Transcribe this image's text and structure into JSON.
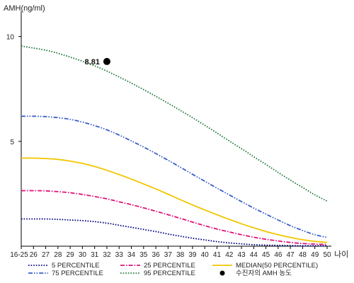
{
  "chart_data": {
    "type": "line",
    "ylabel": "AMH(ng/ml)",
    "xlabel": "나이",
    "categories": [
      "16-25",
      "26",
      "27",
      "28",
      "29",
      "30",
      "31",
      "32",
      "33",
      "34",
      "35",
      "36",
      "37",
      "38",
      "39",
      "40",
      "41",
      "42",
      "43",
      "44",
      "45",
      "46",
      "47",
      "48",
      "49",
      "50"
    ],
    "yticks": [
      5,
      10
    ],
    "ylim": [
      0,
      11
    ],
    "series": [
      {
        "name": "5 PERCENTILE",
        "color": "#000080",
        "dash": "dotted",
        "values": [
          1.3,
          1.3,
          1.3,
          1.28,
          1.25,
          1.22,
          1.17,
          1.1,
          1.0,
          0.9,
          0.8,
          0.7,
          0.58,
          0.48,
          0.38,
          0.3,
          0.22,
          0.16,
          0.11,
          0.07,
          0.05,
          0.04,
          0.03,
          0.02,
          0.02,
          0.02
        ]
      },
      {
        "name": "25 PERCENTILE",
        "color": "#e0107a",
        "dash": "dashdot",
        "values": [
          2.65,
          2.65,
          2.64,
          2.6,
          2.55,
          2.47,
          2.37,
          2.26,
          2.12,
          1.98,
          1.83,
          1.67,
          1.5,
          1.33,
          1.15,
          0.98,
          0.82,
          0.68,
          0.55,
          0.43,
          0.33,
          0.25,
          0.18,
          0.13,
          0.1,
          0.08
        ]
      },
      {
        "name": "MEDIAN(50 PERCENTILE)",
        "color": "#f2c600",
        "dash": "solid",
        "values": [
          4.2,
          4.2,
          4.18,
          4.14,
          4.06,
          3.95,
          3.8,
          3.62,
          3.42,
          3.2,
          2.97,
          2.73,
          2.48,
          2.22,
          1.97,
          1.73,
          1.5,
          1.28,
          1.07,
          0.88,
          0.7,
          0.55,
          0.42,
          0.31,
          0.23,
          0.18
        ]
      },
      {
        "name": "75 PERCENTILE",
        "color": "#3a5fc8",
        "dash": "dashdotdot",
        "values": [
          6.2,
          6.2,
          6.18,
          6.13,
          6.05,
          5.92,
          5.75,
          5.55,
          5.3,
          5.02,
          4.73,
          4.42,
          4.1,
          3.77,
          3.43,
          3.1,
          2.77,
          2.45,
          2.13,
          1.82,
          1.53,
          1.25,
          0.98,
          0.75,
          0.55,
          0.42
        ]
      },
      {
        "name": "95 PERCENTILE",
        "color": "#1f7a3a",
        "dash": "dotted",
        "values": [
          9.55,
          9.45,
          9.35,
          9.2,
          9.02,
          8.82,
          8.6,
          8.35,
          8.07,
          7.78,
          7.47,
          7.15,
          6.82,
          6.48,
          6.13,
          5.77,
          5.4,
          5.02,
          4.65,
          4.27,
          3.9,
          3.52,
          3.15,
          2.8,
          2.45,
          2.15
        ]
      }
    ],
    "marker": {
      "name": "수진자의 AMH 농도",
      "x": "32",
      "y": 8.81,
      "label": "8.81",
      "color": "#000000"
    },
    "grid": false,
    "legend_position": "bottom"
  }
}
